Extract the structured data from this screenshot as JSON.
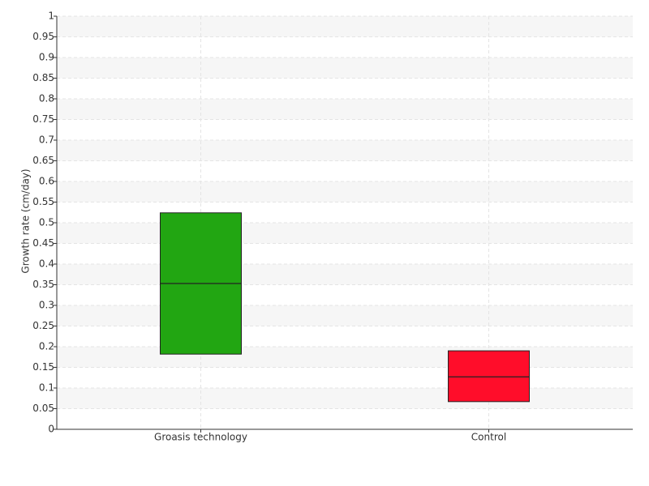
{
  "chart_data": {
    "type": "box",
    "y_label": "Growth rate (cm/day)",
    "categories": [
      "Groasis technology",
      "Control"
    ],
    "boxes": [
      {
        "q1": 0.182,
        "median": 0.353,
        "q3": 0.524,
        "color": "#22a612"
      },
      {
        "q1": 0.067,
        "median": 0.127,
        "q3": 0.19,
        "color": "#ff0d2a"
      }
    ],
    "ylim": [
      0,
      1
    ],
    "yticks": [
      0,
      0.05,
      0.1,
      0.15,
      0.2,
      0.25,
      0.3,
      0.35,
      0.4,
      0.45,
      0.5,
      0.55,
      0.6,
      0.65,
      0.7,
      0.75,
      0.8,
      0.85,
      0.9,
      0.95,
      1
    ],
    "grid": true
  }
}
